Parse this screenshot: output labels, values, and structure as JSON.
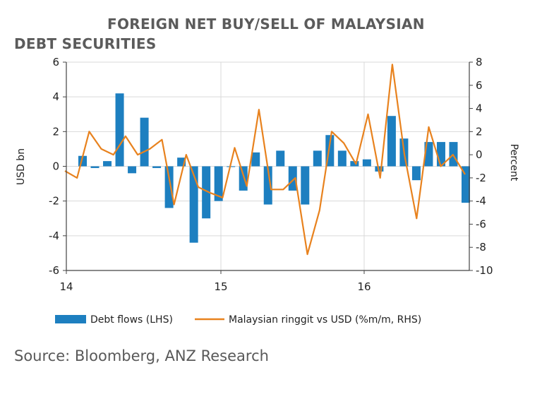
{
  "title_line1": "FOREIGN NET BUY/SELL OF MALAYSIAN",
  "title_line2": "DEBT SECURITIES",
  "source": "Source: Bloomberg, ANZ Research",
  "colors": {
    "bar": "#1d7fc0",
    "line": "#e8821e",
    "grid": "#d9d9d9",
    "axis": "#444444"
  },
  "chart_data": {
    "type": "bar",
    "x_tick_labels": [
      "14",
      "15",
      "16"
    ],
    "left_axis": {
      "label": "USD bn",
      "ylim": [
        -6,
        6
      ],
      "ticks": [
        "6",
        "4",
        "2",
        "0",
        "-2",
        "-4",
        "-6"
      ]
    },
    "right_axis": {
      "label": "Percent",
      "ylim": [
        -10,
        8
      ],
      "ticks": [
        "8",
        "6",
        "4",
        "2",
        "0",
        "-2",
        "-4",
        "-6",
        "-8",
        "-10"
      ]
    },
    "grid": true,
    "legend_position": "bottom",
    "series": [
      {
        "name": "Debt flows (LHS)",
        "type": "bar",
        "axis": "left",
        "values": [
          0.6,
          -0.1,
          0.3,
          4.2,
          -0.4,
          2.8,
          -0.1,
          -2.4,
          0.5,
          -4.4,
          -3.0,
          -2.0,
          0.0,
          -1.4,
          0.8,
          -2.2,
          0.9,
          -1.4,
          -2.2,
          0.9,
          1.8,
          0.9,
          0.3,
          0.4,
          -0.3,
          2.9,
          1.6,
          -0.8,
          1.4,
          1.4,
          1.4,
          -2.1
        ]
      },
      {
        "name": "Malaysian ringgit vs USD (%m/m, RHS)",
        "type": "line",
        "axis": "right",
        "values": [
          -1.4,
          -2.0,
          2.0,
          0.5,
          0.0,
          1.6,
          0.0,
          0.5,
          1.3,
          -4.3,
          0.0,
          -2.8,
          -3.3,
          -3.7,
          0.6,
          -2.7,
          3.9,
          -3.0,
          -3.0,
          -2.0,
          -8.6,
          -4.8,
          2.0,
          1.0,
          -0.8,
          3.5,
          -2.0,
          7.8,
          0.0,
          -5.5,
          2.4,
          -1.0,
          0.0,
          -1.7
        ]
      }
    ]
  }
}
